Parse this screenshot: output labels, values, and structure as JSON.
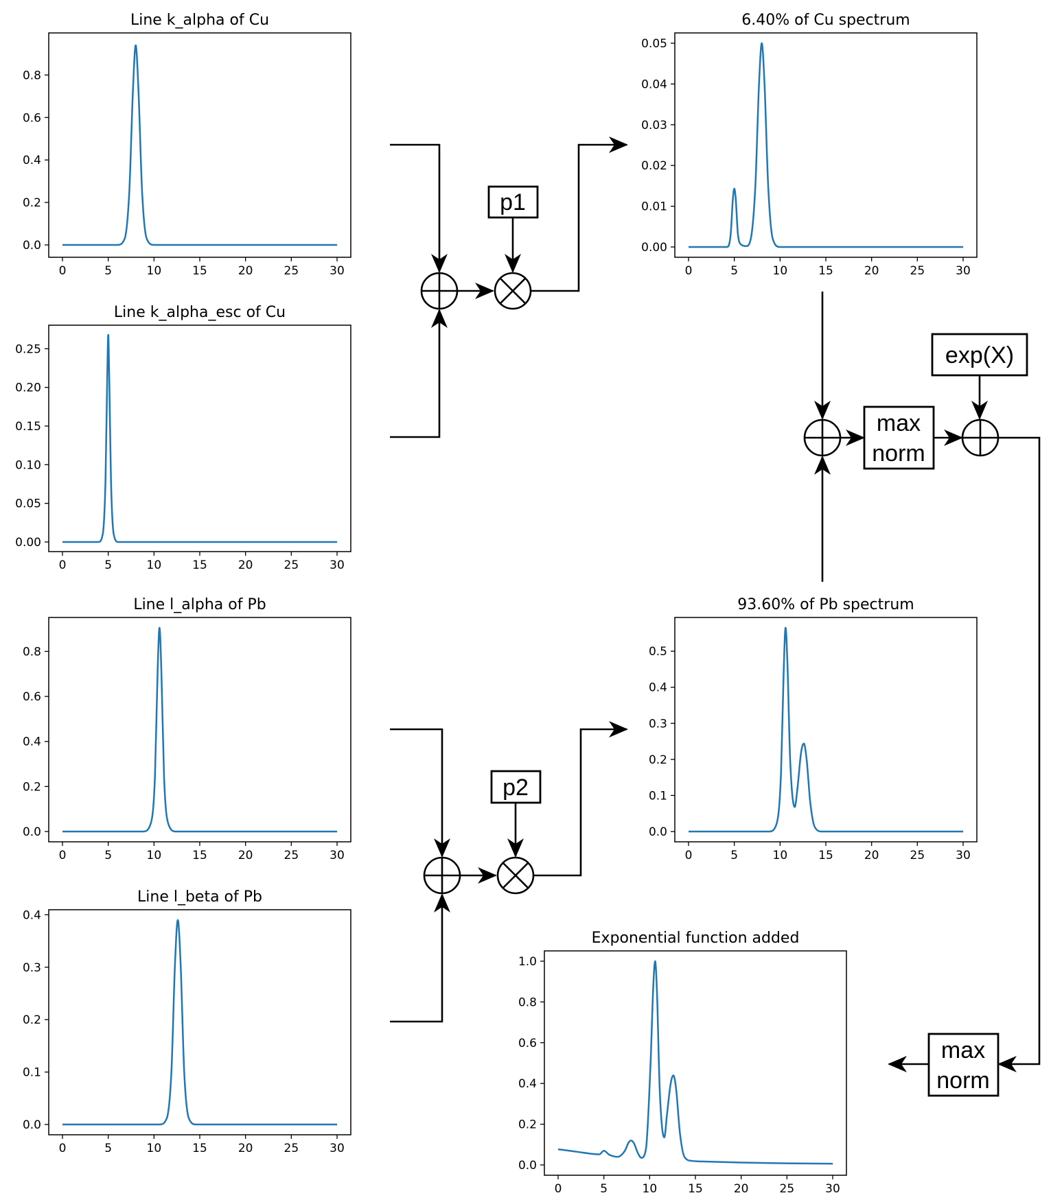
{
  "chart_data": [
    {
      "id": "cu_kalpha",
      "type": "line",
      "title": "Line k_alpha of Cu",
      "xlim": [
        0,
        30
      ],
      "ylim": [
        0,
        0.94
      ],
      "xticks": [
        0,
        5,
        10,
        15,
        20,
        25,
        30
      ],
      "yticks": [
        0.0,
        0.2,
        0.4,
        0.6,
        0.8
      ],
      "ytick_labels": [
        "0.0",
        "0.2",
        "0.4",
        "0.6",
        "0.8"
      ],
      "series": [
        {
          "x": [
            0,
            6.0,
            6.8,
            7.3,
            7.7,
            8.0,
            8.3,
            8.7,
            9.2,
            10.0,
            30
          ],
          "y": [
            0,
            0,
            0.03,
            0.25,
            0.73,
            0.94,
            0.73,
            0.25,
            0.03,
            0,
            0
          ]
        }
      ]
    },
    {
      "id": "cu_kalpha_esc",
      "type": "line",
      "title": "Line k_alpha_esc of Cu",
      "xlim": [
        0,
        30
      ],
      "ylim": [
        0,
        0.268
      ],
      "xticks": [
        0,
        5,
        10,
        15,
        20,
        25,
        30
      ],
      "yticks": [
        0.0,
        0.05,
        0.1,
        0.15,
        0.2,
        0.25
      ],
      "ytick_labels": [
        "0.00",
        "0.05",
        "0.10",
        "0.15",
        "0.20",
        "0.25"
      ],
      "series": [
        {
          "x": [
            0,
            3.9,
            4.4,
            4.7,
            4.9,
            5.0,
            5.1,
            5.3,
            5.6,
            6.1,
            30
          ],
          "y": [
            0,
            0,
            0.01,
            0.08,
            0.22,
            0.268,
            0.22,
            0.08,
            0.01,
            0,
            0
          ]
        }
      ]
    },
    {
      "id": "pb_lalpha",
      "type": "line",
      "title": "Line l_alpha of Pb",
      "xlim": [
        0,
        30
      ],
      "ylim": [
        0,
        0.905
      ],
      "xticks": [
        0,
        5,
        10,
        15,
        20,
        25,
        30
      ],
      "yticks": [
        0.0,
        0.2,
        0.4,
        0.6,
        0.8
      ],
      "ytick_labels": [
        "0.0",
        "0.2",
        "0.4",
        "0.6",
        "0.8"
      ],
      "series": [
        {
          "x": [
            0,
            8.8,
            9.6,
            10.1,
            10.4,
            10.6,
            10.8,
            11.1,
            11.6,
            12.4,
            30
          ],
          "y": [
            0,
            0,
            0.03,
            0.24,
            0.72,
            0.905,
            0.72,
            0.24,
            0.03,
            0,
            0
          ]
        }
      ]
    },
    {
      "id": "pb_lbeta",
      "type": "line",
      "title": "Line l_beta of Pb",
      "xlim": [
        0,
        30
      ],
      "ylim": [
        0,
        0.39
      ],
      "xticks": [
        0,
        5,
        10,
        15,
        20,
        25,
        30
      ],
      "yticks": [
        0.0,
        0.1,
        0.2,
        0.3,
        0.4
      ],
      "ytick_labels": [
        "0.0",
        "0.1",
        "0.2",
        "0.3",
        "0.4"
      ],
      "series": [
        {
          "x": [
            0,
            10.6,
            11.4,
            11.9,
            12.3,
            12.6,
            12.9,
            13.3,
            13.8,
            14.6,
            30
          ],
          "y": [
            0,
            0,
            0.012,
            0.1,
            0.31,
            0.39,
            0.31,
            0.1,
            0.012,
            0,
            0
          ]
        }
      ]
    },
    {
      "id": "cu_spectrum",
      "type": "line",
      "title": "6.40% of Cu spectrum",
      "xlim": [
        0,
        30
      ],
      "ylim": [
        0,
        0.05
      ],
      "xticks": [
        0,
        5,
        10,
        15,
        20,
        25,
        30
      ],
      "yticks": [
        0.0,
        0.01,
        0.02,
        0.03,
        0.04,
        0.05
      ],
      "ytick_labels": [
        "0.00",
        "0.01",
        "0.02",
        "0.03",
        "0.04",
        "0.05"
      ],
      "series": [
        {
          "x": [
            0,
            4.2,
            4.6,
            4.85,
            5.0,
            5.15,
            5.4,
            5.8,
            6.3,
            6.8,
            7.3,
            7.7,
            8.0,
            8.3,
            8.7,
            9.2,
            10.0,
            30
          ],
          "y": [
            0,
            0,
            0.003,
            0.012,
            0.0143,
            0.012,
            0.003,
            0.0005,
            0.0002,
            0.002,
            0.015,
            0.04,
            0.05,
            0.04,
            0.015,
            0.002,
            0,
            0
          ]
        }
      ]
    },
    {
      "id": "pb_spectrum",
      "type": "line",
      "title": "93.60% of Pb spectrum",
      "xlim": [
        0,
        30
      ],
      "ylim": [
        0,
        0.565
      ],
      "xticks": [
        0,
        5,
        10,
        15,
        20,
        25,
        30
      ],
      "yticks": [
        0.0,
        0.1,
        0.2,
        0.3,
        0.4,
        0.5
      ],
      "ytick_labels": [
        "0.0",
        "0.1",
        "0.2",
        "0.3",
        "0.4",
        "0.5"
      ],
      "series": [
        {
          "x": [
            0,
            8.8,
            9.6,
            10.1,
            10.4,
            10.6,
            10.8,
            11.1,
            11.6,
            11.9,
            12.3,
            12.6,
            12.9,
            13.3,
            13.8,
            14.6,
            30
          ],
          "y": [
            0,
            0,
            0.02,
            0.16,
            0.45,
            0.565,
            0.47,
            0.2,
            0.068,
            0.12,
            0.22,
            0.244,
            0.2,
            0.08,
            0.012,
            0,
            0
          ]
        }
      ]
    },
    {
      "id": "exp_added",
      "type": "line",
      "title": "Exponential function added",
      "xlim": [
        0,
        30
      ],
      "ylim": [
        0,
        1.0
      ],
      "xticks": [
        0,
        5,
        10,
        15,
        20,
        25,
        30
      ],
      "yticks": [
        0.0,
        0.2,
        0.4,
        0.6,
        0.8,
        1.0
      ],
      "ytick_labels": [
        "0.0",
        "0.2",
        "0.4",
        "0.6",
        "0.8",
        "1.0"
      ],
      "series": [
        {
          "x": [
            0,
            2,
            4.5,
            5.0,
            5.6,
            6.5,
            7.3,
            7.7,
            8.0,
            8.3,
            8.7,
            9.1,
            9.6,
            10.1,
            10.4,
            10.6,
            10.8,
            11.1,
            11.6,
            11.9,
            12.3,
            12.6,
            12.9,
            13.3,
            13.8,
            14.6,
            16,
            20,
            25,
            30
          ],
          "y": [
            0.077,
            0.065,
            0.052,
            0.07,
            0.05,
            0.04,
            0.07,
            0.11,
            0.12,
            0.105,
            0.06,
            0.035,
            0.08,
            0.5,
            0.88,
            1.0,
            0.85,
            0.37,
            0.135,
            0.25,
            0.4,
            0.44,
            0.37,
            0.16,
            0.04,
            0.02,
            0.017,
            0.012,
            0.008,
            0.006
          ]
        }
      ]
    }
  ],
  "operators": {
    "p1_label": "p1",
    "p2_label": "p2",
    "exp_label": "exp(X)",
    "maxnorm1_line1": "max",
    "maxnorm1_line2": "norm",
    "maxnorm2_line1": "max",
    "maxnorm2_line2": "norm"
  },
  "colors": {
    "series": "#1f77b4",
    "ink": "#000000",
    "background": "#ffffff"
  }
}
